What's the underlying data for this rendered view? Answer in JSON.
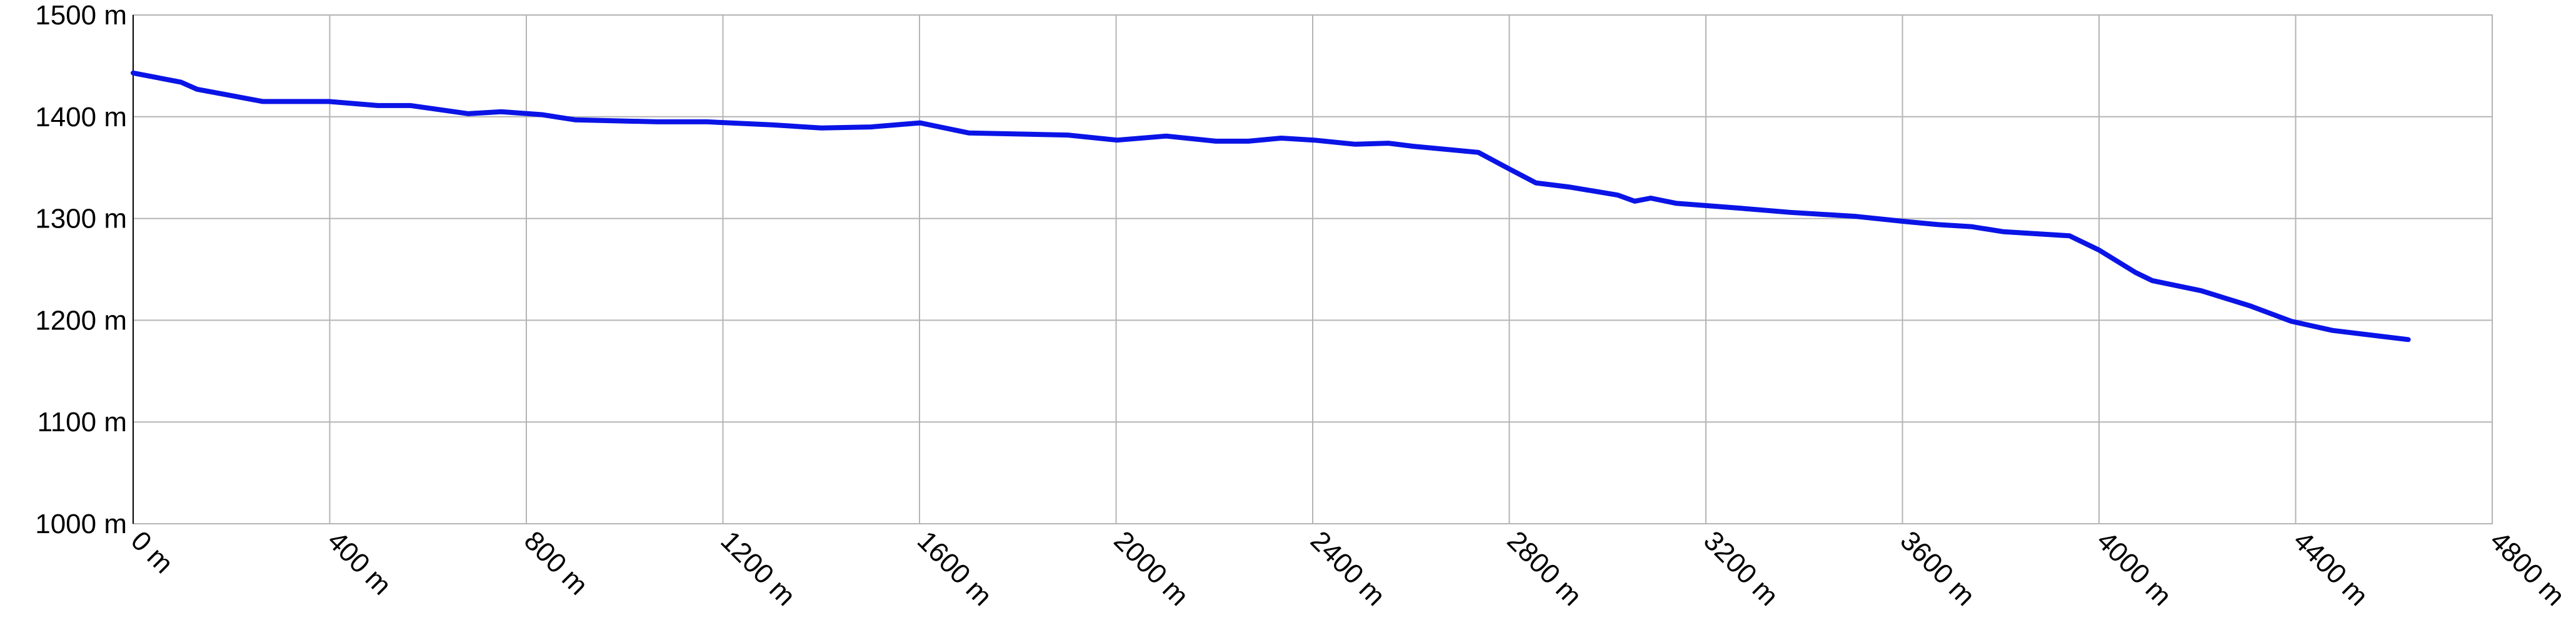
{
  "chart_data": {
    "type": "line",
    "x": [
      0,
      97,
      130,
      197,
      264,
      398,
      498,
      565,
      682,
      749,
      832,
      899,
      1066,
      1167,
      1300,
      1400,
      1501,
      1601,
      1701,
      1902,
      2002,
      2102,
      2203,
      2269,
      2336,
      2403,
      2487,
      2554,
      2604,
      2737,
      2787,
      2854,
      2921,
      2971,
      3021,
      3055,
      3088,
      3139,
      3272,
      3372,
      3506,
      3606,
      3673,
      3740,
      3806,
      3940,
      4000,
      4074,
      4108,
      4208,
      4308,
      4391,
      4475,
      4629
    ],
    "values": [
      1443,
      1434,
      1427,
      1421,
      1415,
      1415,
      1411,
      1411,
      1403,
      1405,
      1402,
      1397,
      1395,
      1395,
      1392,
      1389,
      1390,
      1394,
      1384,
      1382,
      1377,
      1381,
      1376,
      1376,
      1379,
      1377,
      1373,
      1374,
      1371,
      1365,
      1352,
      1335,
      1331,
      1327,
      1323,
      1317,
      1320,
      1315,
      1310,
      1306,
      1302,
      1297,
      1294,
      1292,
      1287,
      1283,
      1269,
      1247,
      1239,
      1229,
      1214,
      1199,
      1190,
      1181
    ],
    "color": "#0a14e6",
    "xlim": [
      0,
      4800
    ],
    "xticks": [
      {
        "value": 0,
        "label": "0 m"
      },
      {
        "value": 400,
        "label": "400 m"
      },
      {
        "value": 800,
        "label": "800 m"
      },
      {
        "value": 1200,
        "label": "1200 m"
      },
      {
        "value": 1600,
        "label": "1600 m"
      },
      {
        "value": 2000,
        "label": "2000 m"
      },
      {
        "value": 2400,
        "label": "2400 m"
      },
      {
        "value": 2800,
        "label": "2800 m"
      },
      {
        "value": 3200,
        "label": "3200 m"
      },
      {
        "value": 3600,
        "label": "3600 m"
      },
      {
        "value": 4000,
        "label": "4000 m"
      },
      {
        "value": 4400,
        "label": "4400 m"
      },
      {
        "value": 4800,
        "label": "4800 m"
      }
    ],
    "ylim": [
      1000,
      1500
    ],
    "yticks": [
      {
        "value": 1000,
        "label": "1000 m"
      },
      {
        "value": 1100,
        "label": "1100 m"
      },
      {
        "value": 1200,
        "label": "1200 m"
      },
      {
        "value": 1300,
        "label": "1300 m"
      },
      {
        "value": 1400,
        "label": "1400 m"
      },
      {
        "value": 1500,
        "label": "1500 m"
      }
    ],
    "grid": true
  }
}
